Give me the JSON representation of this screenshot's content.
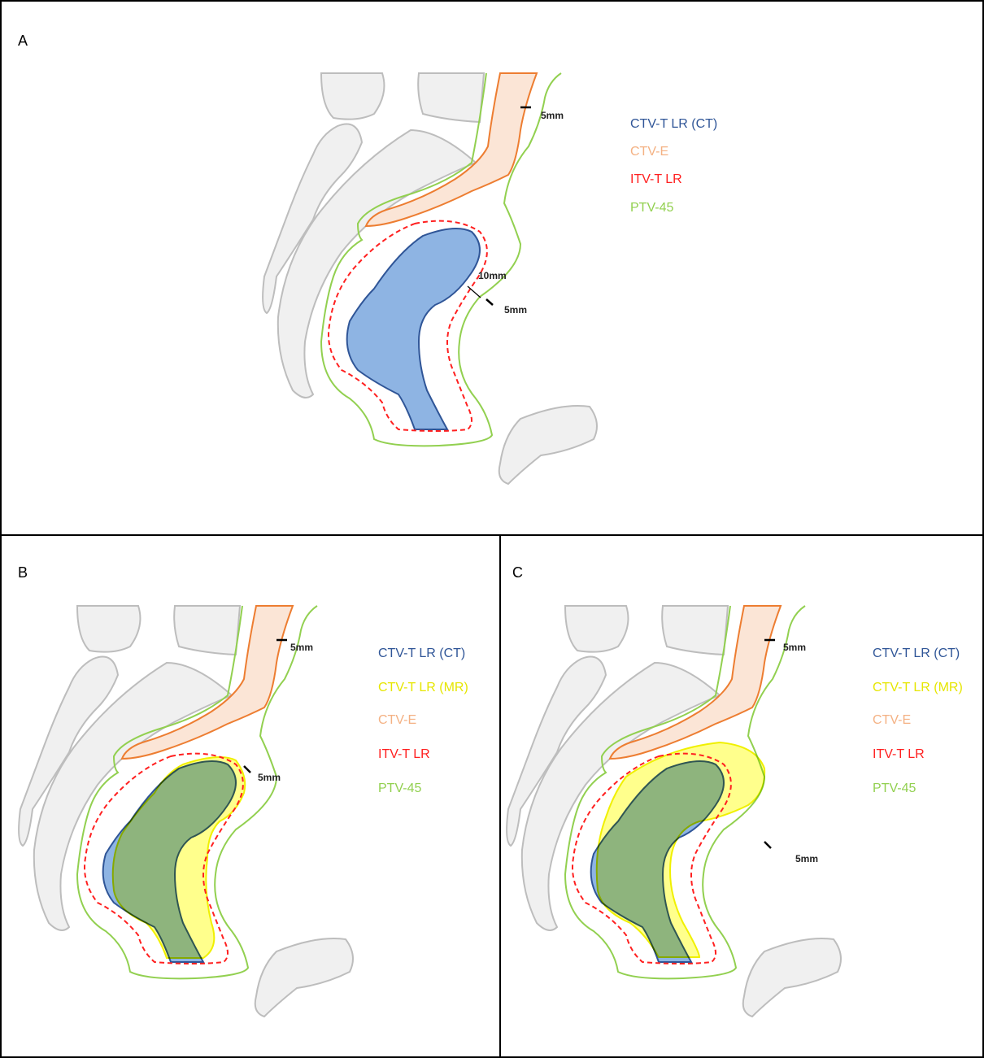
{
  "panels": [
    {
      "label": "A",
      "legend": [
        "CTV-T LR (CT)",
        "CTV-E",
        "ITV-T LR",
        "PTV-45"
      ],
      "annotations": [
        "5mm",
        "10mm",
        "5mm"
      ]
    },
    {
      "label": "B",
      "legend": [
        "CTV-T LR (CT)",
        "CTV-T LR (MR)",
        "CTV-E",
        "ITV-T LR",
        "PTV-45"
      ],
      "annotations": [
        "5mm",
        "5mm"
      ]
    },
    {
      "label": "C",
      "legend": [
        "CTV-T LR (CT)",
        "CTV-T LR (MR)",
        "CTV-E",
        "ITV-T LR",
        "PTV-45"
      ],
      "annotations": [
        "5mm",
        "5mm"
      ]
    }
  ]
}
